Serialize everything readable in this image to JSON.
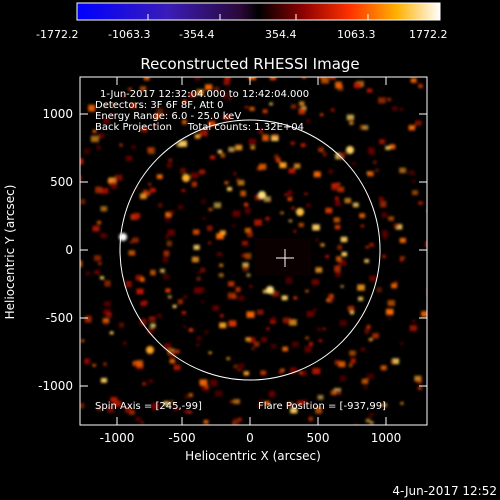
{
  "colorbar": {
    "ticks": [
      "-1772.2",
      "-1063.3",
      "-354.4",
      "354.4",
      "1063.3",
      "1772.2"
    ]
  },
  "plot": {
    "title": "Reconstructed RHESSI Image",
    "annotations": [
      "1-Jun-2017 12:32:04.000 to 12:42:04.000",
      "Detectors: 3F 6F 8F, Att 0",
      "Energy Range: 6.0 - 25.0 keV",
      "Back Projection     Total counts: 1.32E+04"
    ],
    "spin_axis": "Spin Axis = [245,-99]",
    "flare_position": "Flare Position = [-937,99]",
    "xlabel": "Heliocentric X (arcsec)",
    "ylabel": "Heliocentric Y (arcsec)",
    "xticks": [
      "-1000",
      "-500",
      "0",
      "500",
      "1000"
    ],
    "yticks": [
      "1000",
      "500",
      "0",
      "-500",
      "-1000"
    ]
  },
  "footer": {
    "timestamp": "4-Jun-2017 12:52"
  },
  "colors": {
    "background": "#000000",
    "axes": "#ffffff"
  }
}
